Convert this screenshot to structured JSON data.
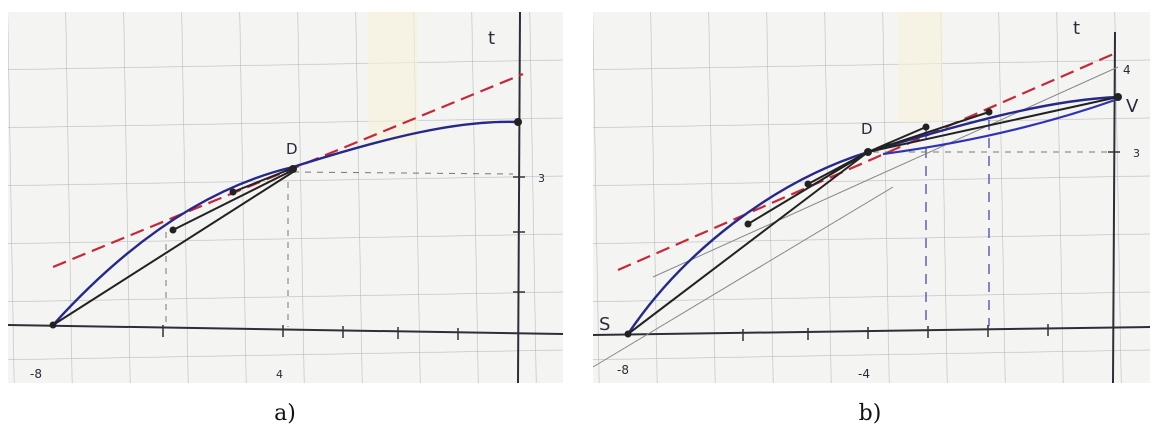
{
  "panels": [
    {
      "caption": "a)",
      "labels": {
        "t": "t",
        "d": "D",
        "y_tick": "3",
        "x_left": "-8",
        "x_mid": "4"
      }
    },
    {
      "caption": "b)",
      "labels": {
        "t": "t",
        "d": "D",
        "y_top": "4",
        "v": "V",
        "s": "S",
        "x_left": "-8",
        "x_mid": "-4",
        "y_tick": "3"
      }
    }
  ]
}
